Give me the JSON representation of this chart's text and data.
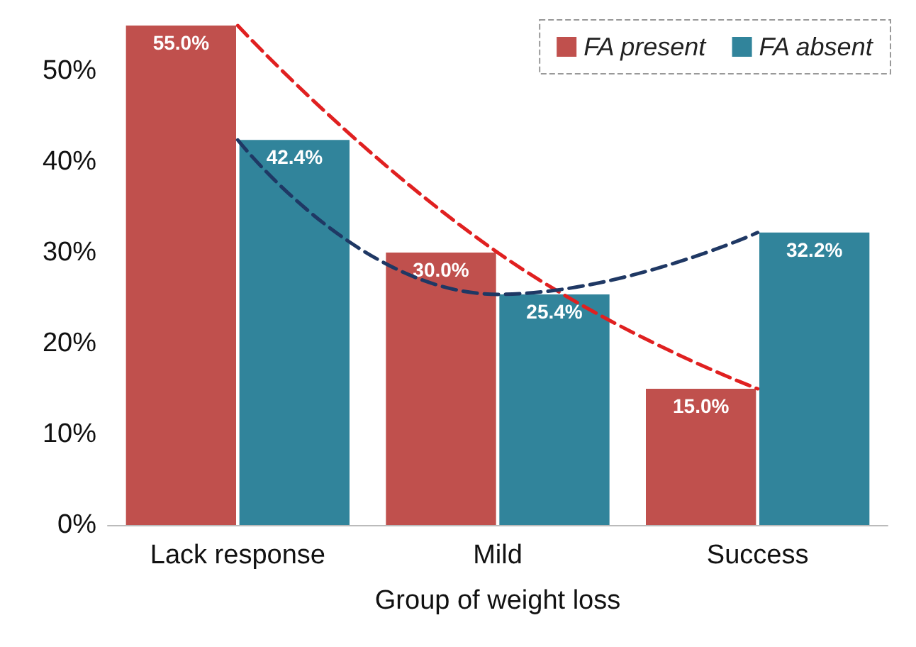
{
  "chart_data": {
    "type": "bar",
    "xlabel": "Group of weight loss",
    "categories": [
      "Lack response",
      "Mild",
      "Success"
    ],
    "series": [
      {
        "name": "FA present",
        "color": "#c0504d",
        "values": [
          55.0,
          30.0,
          15.0
        ],
        "value_labels": [
          "55.0%",
          "30.0%",
          "15.0%"
        ]
      },
      {
        "name": "FA absent",
        "color": "#31849b",
        "values": [
          42.4,
          25.4,
          32.2
        ],
        "value_labels": [
          "42.4%",
          "25.4%",
          "32.2%"
        ]
      },
      {
        "type": "line",
        "color": "#e02020",
        "values": [
          55.0,
          30.0,
          15.0
        ],
        "line_style": "dashed",
        "marker": "none"
      },
      {
        "type": "line",
        "color": "#1f3864",
        "values": [
          42.4,
          25.4,
          32.2
        ],
        "line_style": "dashed",
        "marker": "none"
      }
    ],
    "ylim": [
      0,
      55
    ],
    "yticks": [
      {
        "value": 0,
        "label": "0%"
      },
      {
        "value": 10,
        "label": "10%"
      },
      {
        "value": 20,
        "label": "20%"
      },
      {
        "value": 30,
        "label": "30%"
      },
      {
        "value": 40,
        "label": "40%"
      },
      {
        "value": 50,
        "label": "50%"
      }
    ],
    "grid": false,
    "legend": "top right"
  }
}
